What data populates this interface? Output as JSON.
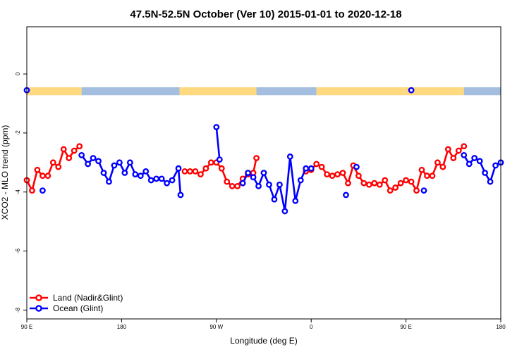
{
  "chart_data": {
    "type": "line",
    "title": "47.5N-52.5N October (Ver 10)   2015-01-01 to 2020-12-18",
    "xlabel": "Longitude (deg E)",
    "ylabel": "XCO2 - MLO trend (ppm)",
    "x_ticks": [
      {
        "value": 0,
        "label": "90 E"
      },
      {
        "value": 90,
        "label": "180"
      },
      {
        "value": 180,
        "label": "90 W"
      },
      {
        "value": 270,
        "label": "0"
      },
      {
        "value": 360,
        "label": "90 E"
      },
      {
        "value": 450,
        "label": "180"
      }
    ],
    "y_ticks": [
      0,
      -2,
      -4,
      -6,
      -8
    ],
    "xlim": [
      0,
      450
    ],
    "ylim": [
      -8.3,
      1.6
    ],
    "grid": false,
    "legend_position": "bottom-left",
    "land_sea_strip": {
      "y_top": -0.45,
      "y_bottom": -0.72,
      "land_color": "#FFD980",
      "ocean_color": "#A3BEDF",
      "segments": [
        {
          "x0": 0,
          "x1": 52,
          "type": "land"
        },
        {
          "x0": 52,
          "x1": 145,
          "type": "ocean"
        },
        {
          "x0": 145,
          "x1": 218,
          "type": "land"
        },
        {
          "x0": 218,
          "x1": 275,
          "type": "ocean"
        },
        {
          "x0": 275,
          "x1": 415,
          "type": "land"
        },
        {
          "x0": 415,
          "x1": 450,
          "type": "ocean"
        }
      ]
    },
    "series": [
      {
        "name": "Land (Nadir&Glint)",
        "color": "#FF0000",
        "segments": [
          [
            [
              0,
              -3.6
            ],
            [
              5,
              -3.95
            ],
            [
              10,
              -3.25
            ],
            [
              15,
              -3.45
            ],
            [
              20,
              -3.45
            ],
            [
              25,
              -3.0
            ],
            [
              30,
              -3.15
            ],
            [
              35,
              -2.55
            ],
            [
              40,
              -2.85
            ],
            [
              45,
              -2.6
            ],
            [
              50,
              -2.45
            ]
          ],
          [
            [
              150,
              -3.3
            ],
            [
              155,
              -3.3
            ],
            [
              160,
              -3.3
            ],
            [
              165,
              -3.4
            ],
            [
              170,
              -3.2
            ],
            [
              175,
              -3.0
            ],
            [
              180,
              -3.0
            ],
            [
              185,
              -3.2
            ],
            [
              190,
              -3.65
            ],
            [
              195,
              -3.8
            ],
            [
              200,
              -3.8
            ],
            [
              205,
              -3.55
            ],
            [
              210,
              -3.4
            ],
            [
              215,
              -3.35
            ],
            [
              218,
              -2.85
            ]
          ],
          [
            [
              265,
              -3.3
            ],
            [
              270,
              -3.25
            ],
            [
              275,
              -3.05
            ],
            [
              280,
              -3.15
            ],
            [
              285,
              -3.4
            ],
            [
              290,
              -3.45
            ],
            [
              295,
              -3.4
            ],
            [
              300,
              -3.35
            ],
            [
              305,
              -3.7
            ],
            [
              310,
              -3.1
            ],
            [
              315,
              -3.45
            ],
            [
              320,
              -3.7
            ],
            [
              325,
              -3.75
            ],
            [
              330,
              -3.7
            ],
            [
              335,
              -3.75
            ],
            [
              340,
              -3.6
            ],
            [
              345,
              -3.95
            ],
            [
              350,
              -3.85
            ],
            [
              355,
              -3.7
            ],
            [
              360,
              -3.6
            ],
            [
              365,
              -3.65
            ],
            [
              370,
              -3.95
            ],
            [
              375,
              -3.25
            ],
            [
              380,
              -3.45
            ],
            [
              385,
              -3.45
            ],
            [
              390,
              -3.0
            ],
            [
              395,
              -3.15
            ],
            [
              400,
              -2.55
            ],
            [
              405,
              -2.85
            ],
            [
              410,
              -2.6
            ],
            [
              415,
              -2.45
            ]
          ]
        ]
      },
      {
        "name": "Ocean (Glint)",
        "color": "#0000FF",
        "segments": [
          [
            [
              0,
              -0.55
            ]
          ],
          [
            [
              15,
              -3.95
            ]
          ],
          [
            [
              52,
              -2.75
            ],
            [
              58,
              -3.05
            ],
            [
              63,
              -2.85
            ],
            [
              68,
              -2.95
            ],
            [
              73,
              -3.35
            ],
            [
              78,
              -3.65
            ],
            [
              83,
              -3.1
            ],
            [
              88,
              -3.0
            ],
            [
              93,
              -3.35
            ],
            [
              98,
              -3.0
            ],
            [
              103,
              -3.4
            ],
            [
              108,
              -3.45
            ],
            [
              113,
              -3.3
            ],
            [
              118,
              -3.6
            ],
            [
              123,
              -3.55
            ],
            [
              128,
              -3.55
            ],
            [
              133,
              -3.7
            ],
            [
              138,
              -3.6
            ],
            [
              144,
              -3.2
            ],
            [
              146,
              -4.1
            ]
          ],
          [
            [
              180,
              -1.8
            ],
            [
              183,
              -2.9
            ]
          ],
          [
            [
              205,
              -3.7
            ],
            [
              210,
              -3.35
            ],
            [
              215,
              -3.5
            ],
            [
              220,
              -3.8
            ],
            [
              225,
              -3.35
            ],
            [
              230,
              -3.75
            ],
            [
              235,
              -4.25
            ],
            [
              240,
              -3.75
            ],
            [
              245,
              -4.65
            ],
            [
              250,
              -2.8
            ],
            [
              255,
              -4.3
            ],
            [
              260,
              -3.6
            ],
            [
              265,
              -3.2
            ],
            [
              270,
              -3.2
            ]
          ],
          [
            [
              303,
              -4.1
            ]
          ],
          [
            [
              313,
              -3.15
            ]
          ],
          [
            [
              365,
              -0.55
            ]
          ],
          [
            [
              377,
              -3.95
            ]
          ],
          [
            [
              415,
              -2.75
            ],
            [
              420,
              -3.05
            ],
            [
              425,
              -2.85
            ],
            [
              430,
              -2.95
            ],
            [
              435,
              -3.35
            ],
            [
              440,
              -3.65
            ],
            [
              445,
              -3.1
            ],
            [
              450,
              -3.0
            ]
          ]
        ]
      }
    ]
  }
}
